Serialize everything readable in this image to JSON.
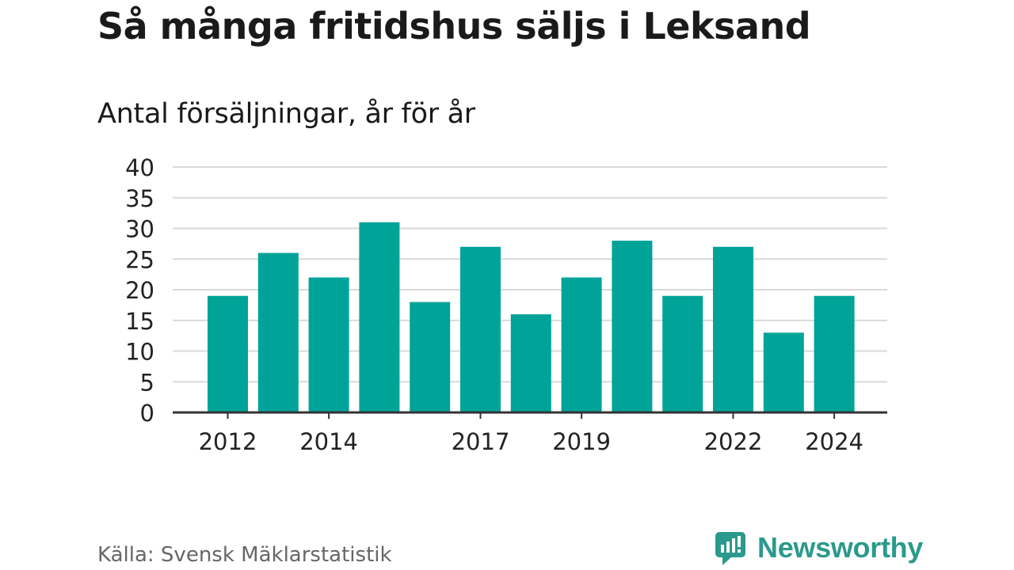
{
  "header": {
    "title": "Så många fritidshus säljs i Leksand",
    "subtitle": "Antal försäljningar, år för år"
  },
  "footer": {
    "source": "Källa: Svensk Mäklarstatistik",
    "brand": "Newsworthy"
  },
  "colors": {
    "bar": "#00a398",
    "grid": "#d9d9d9",
    "axis": "#333333",
    "brand": "#2b9a8c"
  },
  "chart_data": {
    "type": "bar",
    "title": "Så många fritidshus säljs i Leksand",
    "subtitle": "Antal försäljningar, år för år",
    "categories": [
      "2012",
      "2013",
      "2014",
      "2015",
      "2016",
      "2017",
      "2018",
      "2019",
      "2020",
      "2021",
      "2022",
      "2023",
      "2024"
    ],
    "values": [
      19,
      26,
      22,
      31,
      18,
      27,
      16,
      22,
      28,
      19,
      27,
      13,
      19
    ],
    "x_tick_labels": [
      "2012",
      "2014",
      "2017",
      "2019",
      "2022",
      "2024"
    ],
    "y_ticks": [
      0,
      5,
      10,
      15,
      20,
      25,
      30,
      35,
      40
    ],
    "ylim": [
      0,
      40
    ],
    "grid": true,
    "legend": "none"
  }
}
